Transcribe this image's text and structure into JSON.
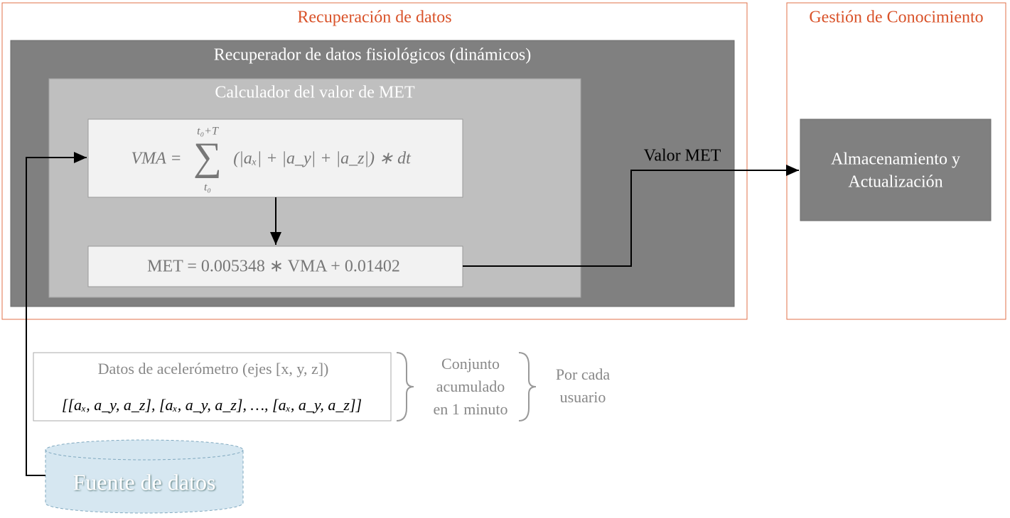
{
  "retrieval": {
    "title": "Recuperación de datos",
    "retriever": {
      "title": "Recuperador de datos fisiológicos (dinámicos)",
      "calculator": {
        "title": "Calculador del valor de MET",
        "vma_formula": {
          "lhs": "VMA =",
          "sum_upper": "t₀+T",
          "sum_lower": "t₀",
          "body": "(|aₓ| + |a_y| + |a_z|) ∗ dt"
        },
        "met_formula": "MET = 0.005348 ∗ VMA + 0.01402"
      }
    },
    "output_label": "Valor MET"
  },
  "knowledge": {
    "title": "Gestión de Conocimiento",
    "store": [
      "Almacenamiento y",
      "Actualización"
    ]
  },
  "data": {
    "title": "Datos de acelerómetro (ejes [x, y, z])",
    "sample": "[[aₓ, a_y, a_z], [aₓ, a_y, a_z], …, [aₓ, a_y, a_z]]",
    "group1": [
      "Conjunto",
      "acumulado",
      "en 1 minuto"
    ],
    "group2": [
      "Por cada",
      "usuario"
    ]
  },
  "source": "Fuente de datos"
}
